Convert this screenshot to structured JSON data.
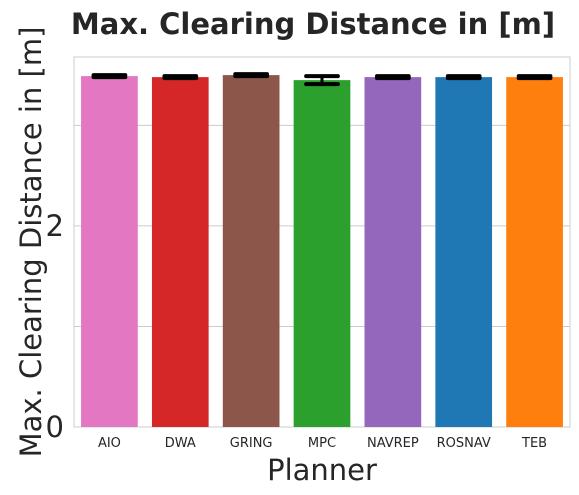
{
  "chart_data": {
    "type": "bar",
    "title": "Max. Clearing Distance in [m]",
    "xlabel": "Planner",
    "ylabel": "Max. Clearing Distance in [m]",
    "categories": [
      "AIO",
      "DWA",
      "GRING",
      "MPC",
      "NAVREP",
      "ROSNAV",
      "TEB"
    ],
    "values": [
      3.49,
      3.48,
      3.5,
      3.45,
      3.48,
      3.48,
      3.48
    ],
    "errors": [
      0.01,
      0.01,
      0.01,
      0.04,
      0.01,
      0.01,
      0.01
    ],
    "colors": [
      "#e377c2",
      "#d62728",
      "#8c564b",
      "#2ca02c",
      "#9467bd",
      "#1f77b4",
      "#ff7f0e"
    ],
    "ylim": [
      0,
      3.68
    ],
    "yticks": [
      0,
      1,
      2,
      3
    ],
    "ytick_labels": [
      "0",
      "",
      "2",
      ""
    ],
    "grid": true,
    "legend": "none"
  }
}
